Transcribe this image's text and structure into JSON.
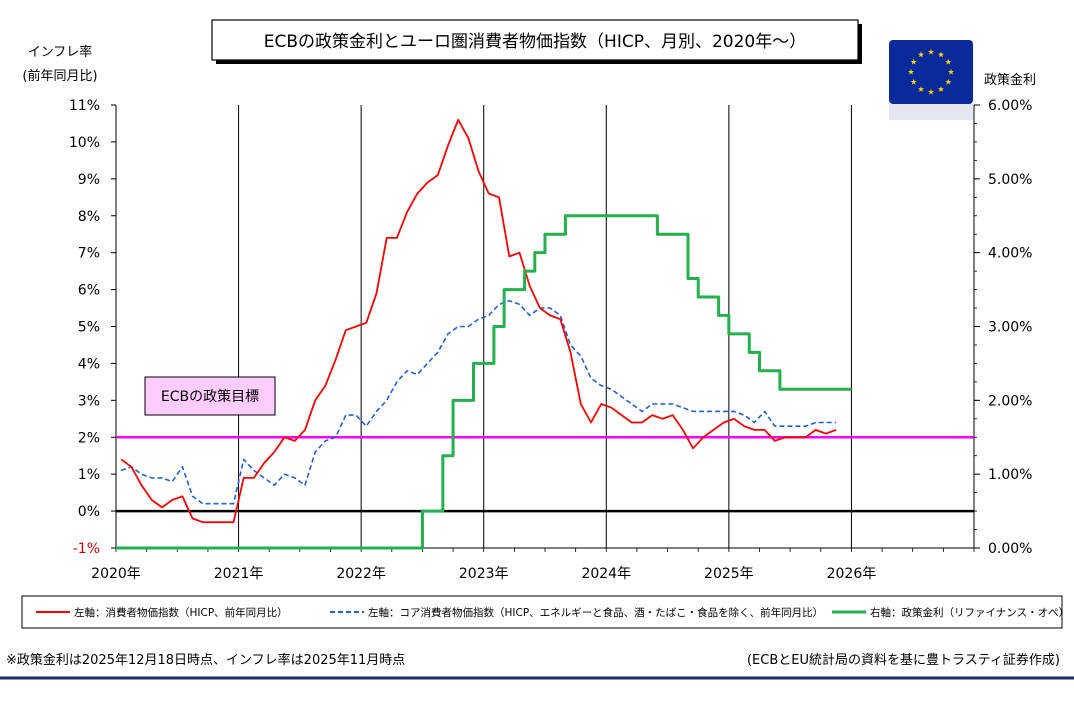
{
  "chart_data": {
    "type": "line",
    "title": "ECBの政策金利とユーロ圏消費者物価指数（HICP、月別、2020年～）",
    "left_axis": {
      "label_line1": "インフレ率",
      "label_line2": "(前年同月比)",
      "ticks": [
        "-1%",
        "0%",
        "1%",
        "2%",
        "3%",
        "4%",
        "5%",
        "6%",
        "7%",
        "8%",
        "9%",
        "10%",
        "11%"
      ],
      "range": [
        -1,
        11
      ]
    },
    "right_axis": {
      "label": "政策金利",
      "ticks": [
        "0.00%",
        "1.00%",
        "2.00%",
        "3.00%",
        "4.00%",
        "5.00%",
        "6.00%"
      ],
      "range": [
        0,
        6
      ]
    },
    "x_axis": {
      "ticks": [
        "2020年",
        "2021年",
        "2022年",
        "2023年",
        "2024年",
        "2025年",
        "2026年"
      ],
      "range": [
        "2020-01",
        "2027-01"
      ]
    },
    "target": {
      "label": "ECBの政策目標",
      "value": 2,
      "color": "#ff00ff"
    },
    "series": [
      {
        "name": "左軸：消費者物価指数（HICP、前年同月比）",
        "color": "#ff0000",
        "axis": "left",
        "values": [
          1.4,
          1.2,
          0.7,
          0.3,
          0.1,
          0.3,
          0.4,
          -0.2,
          -0.3,
          -0.3,
          -0.3,
          -0.3,
          0.9,
          0.9,
          1.3,
          1.6,
          2.0,
          1.9,
          2.2,
          3.0,
          3.4,
          4.1,
          4.9,
          5.0,
          5.1,
          5.9,
          7.4,
          7.4,
          8.1,
          8.6,
          8.9,
          9.1,
          9.9,
          10.6,
          10.1,
          9.2,
          8.6,
          8.5,
          6.9,
          7.0,
          6.1,
          5.5,
          5.3,
          5.2,
          4.3,
          2.9,
          2.4,
          2.9,
          2.8,
          2.6,
          2.4,
          2.4,
          2.6,
          2.5,
          2.6,
          2.2,
          1.7,
          2.0,
          2.2,
          2.4,
          2.5,
          2.3,
          2.2,
          2.2,
          1.9,
          2.0,
          2.0,
          2.0,
          2.2,
          2.1,
          2.2
        ]
      },
      {
        "name": "左軸：コア消費者物価指数（HICP、エネルギーと食品、酒・たばこ・食品を除く、前年同月比）",
        "color": "#1f5fe0",
        "axis": "left",
        "values": [
          1.1,
          1.2,
          1.0,
          0.9,
          0.9,
          0.8,
          1.2,
          0.4,
          0.2,
          0.2,
          0.2,
          0.2,
          1.4,
          1.1,
          0.9,
          0.7,
          1.0,
          0.9,
          0.7,
          1.6,
          1.9,
          2.0,
          2.6,
          2.6,
          2.3,
          2.7,
          3.0,
          3.5,
          3.8,
          3.7,
          4.0,
          4.3,
          4.8,
          5.0,
          5.0,
          5.2,
          5.3,
          5.6,
          5.7,
          5.6,
          5.3,
          5.5,
          5.5,
          5.3,
          4.5,
          4.2,
          3.6,
          3.4,
          3.3,
          3.1,
          2.9,
          2.7,
          2.9,
          2.9,
          2.9,
          2.8,
          2.7,
          2.7,
          2.7,
          2.7,
          2.7,
          2.6,
          2.4,
          2.7,
          2.3,
          2.3,
          2.3,
          2.3,
          2.4,
          2.4,
          2.4
        ]
      },
      {
        "name": "右軸：政策金利（リファイナンス・オペ）",
        "color": "#22b14c",
        "axis": "right",
        "values": [
          0,
          0,
          0,
          0,
          0,
          0,
          0,
          0,
          0,
          0,
          0,
          0,
          0,
          0,
          0,
          0,
          0,
          0,
          0,
          0,
          0,
          0,
          0,
          0,
          0,
          0,
          0,
          0,
          0,
          0,
          0.5,
          0.5,
          1.25,
          2.0,
          2.0,
          2.5,
          2.5,
          3.0,
          3.5,
          3.5,
          3.75,
          4.0,
          4.25,
          4.25,
          4.5,
          4.5,
          4.5,
          4.5,
          4.5,
          4.5,
          4.5,
          4.5,
          4.5,
          4.25,
          4.25,
          4.25,
          3.65,
          3.4,
          3.4,
          3.15,
          2.9,
          2.9,
          2.65,
          2.4,
          2.4,
          2.15,
          2.15,
          2.15,
          2.15,
          2.15,
          2.15,
          2.15
        ]
      }
    ],
    "legend_position": "bottom",
    "grid": "vertical-yearly"
  },
  "footnote_left": "※政策金利は2025年12月18日時点、インフレ率は2025年11月時点",
  "footnote_right": "(ECBとEU統計局の資料を基に豊トラスティ証券作成)",
  "colors": {
    "zero_line": "#000000",
    "bottom_rule": "#1f2a6b",
    "flag_blue": "#0a2a9c",
    "flag_star": "#ffd200"
  }
}
